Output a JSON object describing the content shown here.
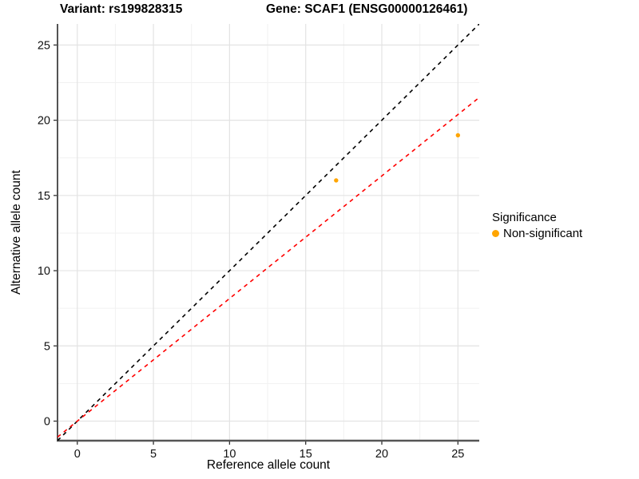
{
  "chart_data": {
    "type": "scatter",
    "title_variant": "Variant: rs199828315",
    "title_gene": "Gene: SCAF1 (ENSG00000126461)",
    "xlabel": "Reference allele count",
    "ylabel": "Alternative allele count",
    "xlim": [
      -1.3,
      26.4
    ],
    "ylim": [
      -1.3,
      26.4
    ],
    "ticks": [
      0,
      5,
      10,
      15,
      20,
      25
    ],
    "minor_ticks": [
      2.5,
      7.5,
      12.5,
      17.5,
      22.5
    ],
    "grid": true,
    "points": [
      {
        "x": 17,
        "y": 16,
        "significance": "Non-significant"
      },
      {
        "x": 25,
        "y": 19,
        "significance": "Non-significant"
      }
    ],
    "lines": [
      {
        "name": "identity-line",
        "slope": 1,
        "intercept": 0,
        "color": "#000000",
        "style": "dashed"
      },
      {
        "name": "fit-line",
        "slope": 0.815,
        "intercept": 0,
        "color": "#FF0000",
        "style": "dashed"
      }
    ],
    "legend": {
      "title": "Significance",
      "position": "right",
      "items": [
        {
          "label": "Non-significant",
          "color": "#FFA500"
        }
      ]
    },
    "colors": {
      "point": "#FFA500",
      "grid_major": "#E3E3E3",
      "grid_minor": "#F1F1F1",
      "axis_line_left": "#1a1a1a",
      "axis_line_bottom": "#555555",
      "tick_mark": "#333333",
      "tick_label": "#111111"
    }
  }
}
